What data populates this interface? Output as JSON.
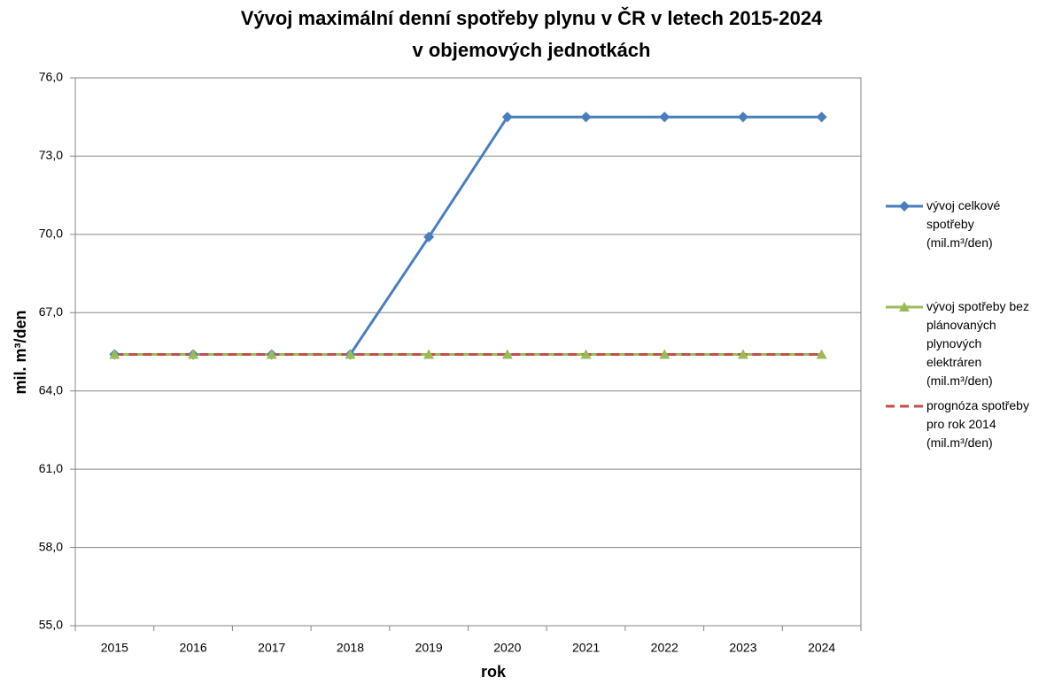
{
  "chart_data": {
    "type": "line",
    "title": "Vývoj maximální denní spotřeby plynu v ČR v letech 2015-2024",
    "subtitle": "v objemových jednotkách",
    "x_label": "rok",
    "y_label": "mil. m³/den",
    "categories": [
      "2015",
      "2016",
      "2017",
      "2018",
      "2019",
      "2020",
      "2021",
      "2022",
      "2023",
      "2024"
    ],
    "series": [
      {
        "name": "vývoj celkové spotřeby (mil.m³/den)",
        "color": "#4a7ebb",
        "marker": "diamond",
        "dash": false,
        "values": [
          65.4,
          65.4,
          65.4,
          65.4,
          69.9,
          74.5,
          74.5,
          74.5,
          74.5,
          74.5
        ]
      },
      {
        "name": "vývoj spotřeby bez plánovaných plynových elektráren (mil.m³/den)",
        "color": "#9bbb59",
        "marker": "triangle",
        "dash": false,
        "values": [
          65.4,
          65.4,
          65.4,
          65.4,
          65.4,
          65.4,
          65.4,
          65.4,
          65.4,
          65.4
        ]
      },
      {
        "name": "prognóza spotřeby pro rok 2014 (mil.m³/den)",
        "color": "#c0504d",
        "marker": "none",
        "dash": true,
        "values": [
          65.4,
          65.4,
          65.4,
          65.4,
          65.4,
          65.4,
          65.4,
          65.4,
          65.4,
          65.4
        ]
      }
    ],
    "ylim": [
      55,
      76
    ],
    "yticks": [
      {
        "value": 55,
        "label": "55,0"
      },
      {
        "value": 58,
        "label": "58,0"
      },
      {
        "value": 61,
        "label": "61,0"
      },
      {
        "value": 64,
        "label": "64,0"
      },
      {
        "value": 67,
        "label": "67,0"
      },
      {
        "value": 70,
        "label": "70,0"
      },
      {
        "value": 73,
        "label": "73,0"
      },
      {
        "value": 76,
        "label": "76,0"
      }
    ],
    "grid": true,
    "legend": "right"
  }
}
